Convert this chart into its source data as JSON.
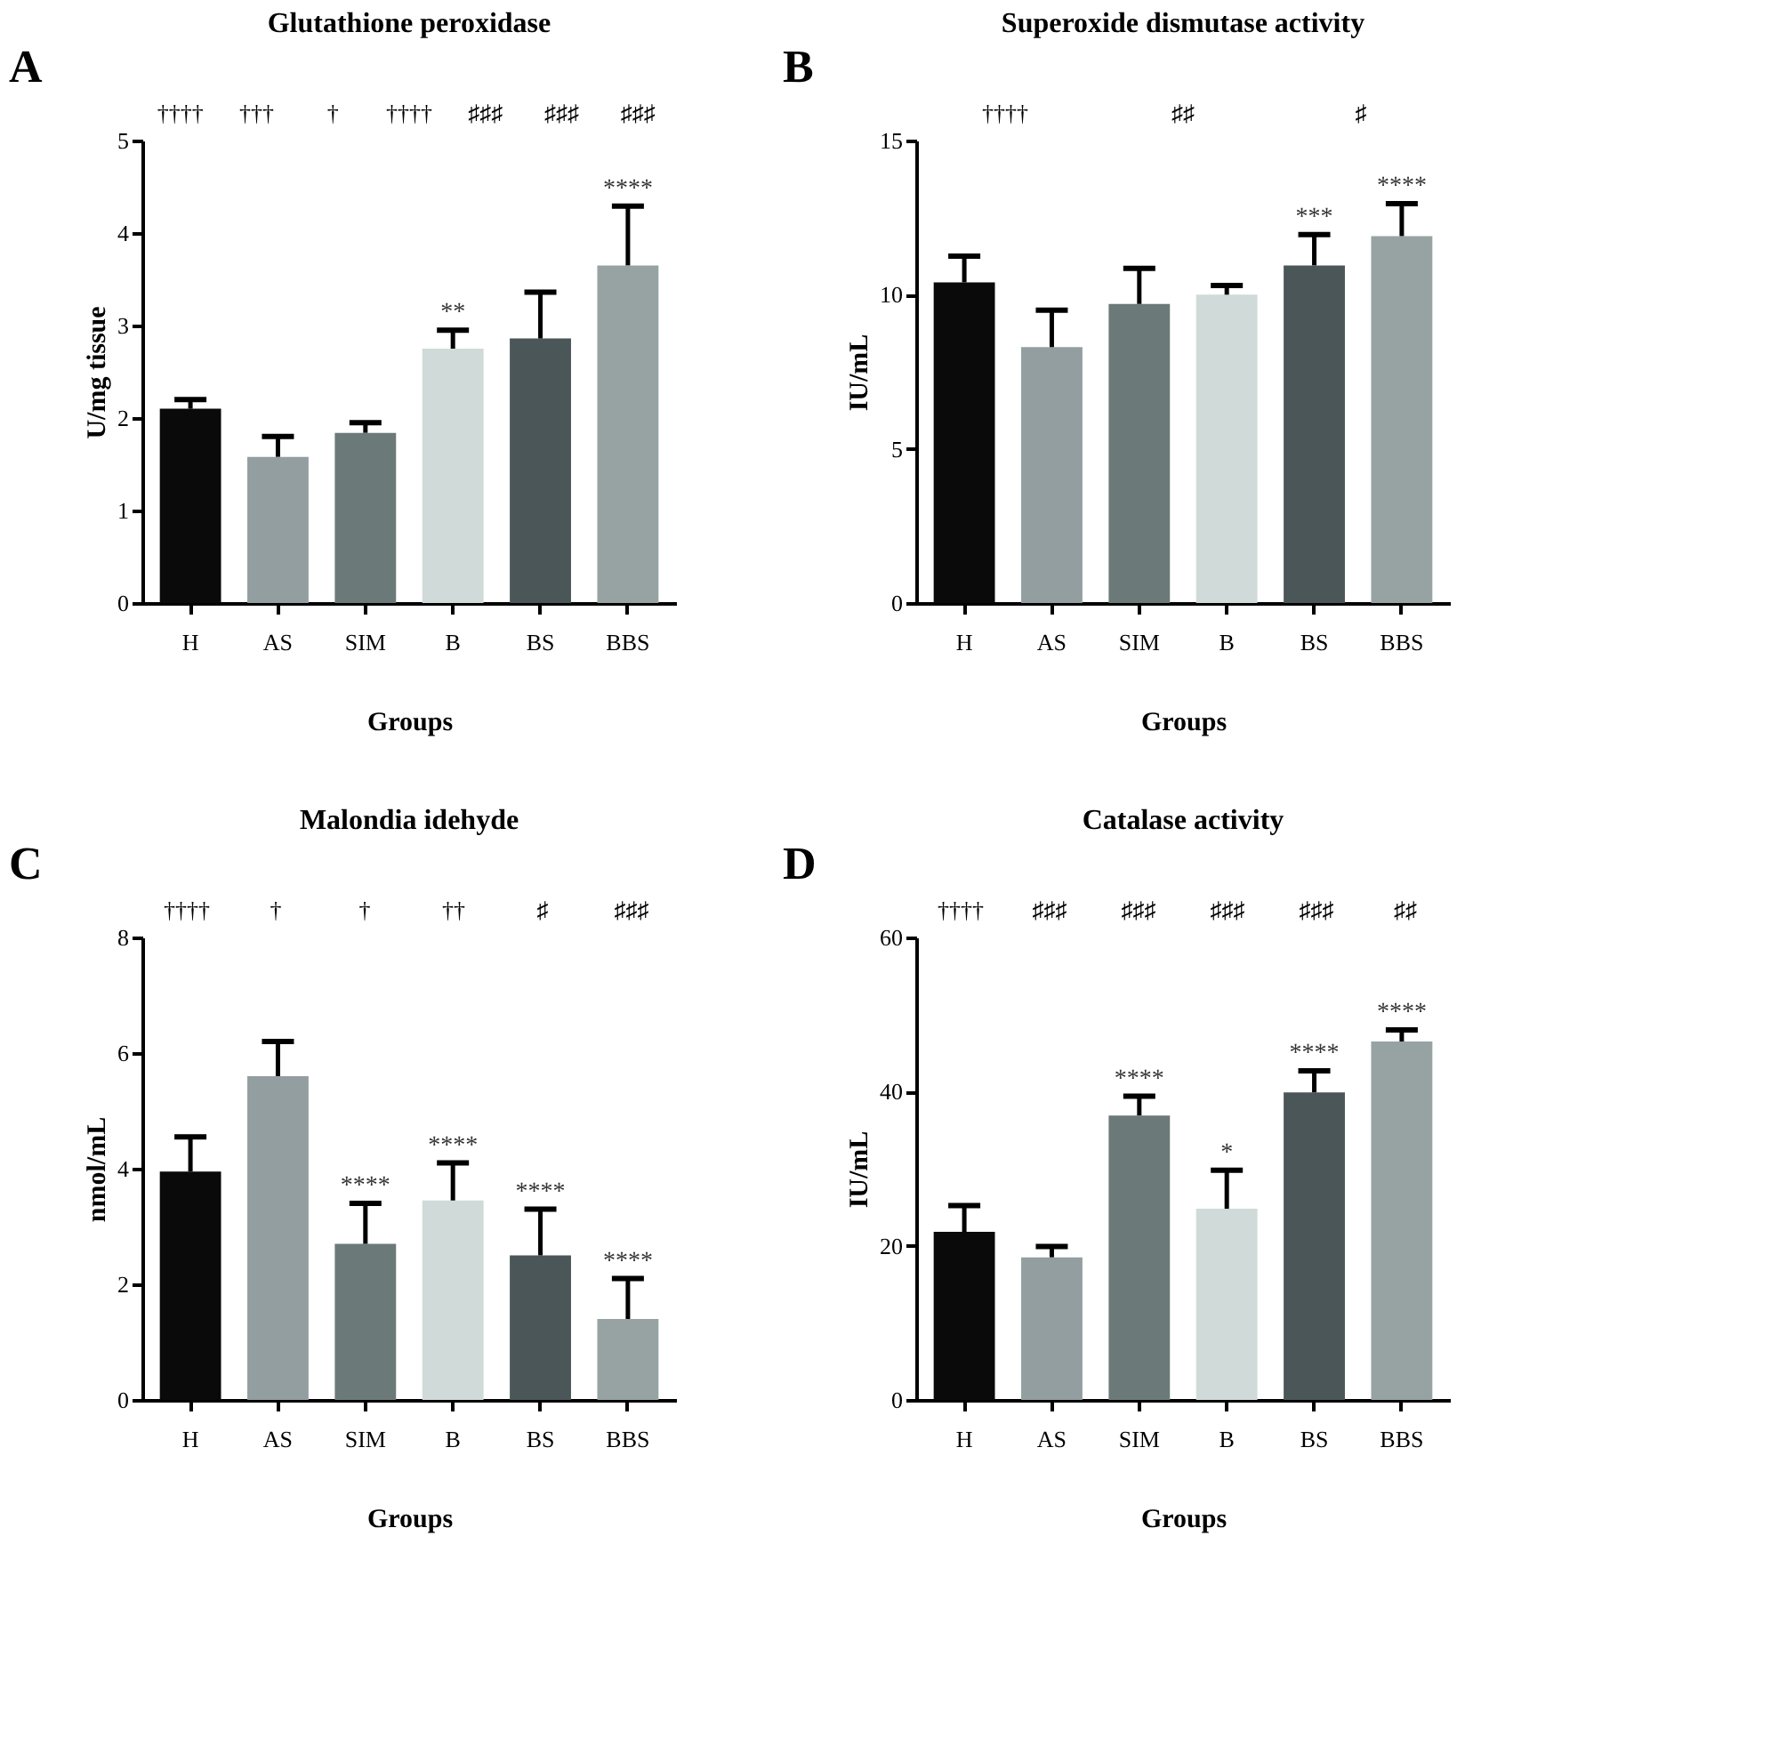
{
  "chart_data": [
    {
      "type": "bar",
      "title": "Glutathione peroxidase",
      "xlabel": "Groups",
      "ylabel": "U/mg tissue",
      "categories": [
        "H",
        "AS",
        "SIM",
        "B",
        "BS",
        "BBS"
      ],
      "values": [
        2.1,
        1.58,
        1.84,
        2.75,
        2.86,
        3.65
      ],
      "errors": [
        [
          2.1,
          2.2
        ],
        [
          1.58,
          1.8
        ],
        [
          1.84,
          1.95
        ],
        [
          2.75,
          2.95
        ],
        [
          2.86,
          3.36
        ],
        [
          3.65,
          4.29
        ]
      ],
      "colors": [
        "#0a0a0a",
        "#939ea0",
        "#6b7a78",
        "#d0dad8",
        "#4a5658",
        "#97a3a3"
      ],
      "ylim": [
        0,
        5
      ],
      "yticks": [
        0,
        1,
        2,
        3,
        4,
        5
      ],
      "grid": false,
      "legend": false,
      "annotations": [
        "A",
        "††††",
        "†††",
        "†",
        "††††",
        "♯♯♯",
        "♯♯♯",
        "♯♯♯",
        {
          "text": "**",
          "x": "B",
          "y": 2.95
        },
        {
          "text": "****",
          "x": "BBS",
          "y": 4.29
        }
      ]
    },
    {
      "type": "bar",
      "title": "Superoxide dismutase activity",
      "xlabel": "Groups",
      "ylabel": "IU/mL",
      "categories": [
        "H",
        "AS",
        "SIM",
        "B",
        "BS",
        "BBS"
      ],
      "values": [
        10.4,
        8.3,
        9.7,
        10.0,
        10.95,
        11.9
      ],
      "errors": [
        [
          10.4,
          11.25
        ],
        [
          8.3,
          9.5
        ],
        [
          9.7,
          10.85
        ],
        [
          10.0,
          10.3
        ],
        [
          10.95,
          11.95
        ],
        [
          11.9,
          12.95
        ]
      ],
      "colors": [
        "#0a0a0a",
        "#939ea0",
        "#6b7a78",
        "#d0dad8",
        "#4a5658",
        "#97a3a3"
      ],
      "ylim": [
        0,
        15
      ],
      "yticks": [
        0,
        5,
        10,
        15
      ],
      "grid": false,
      "legend": false,
      "annotations": [
        "B",
        "††††",
        "♯♯",
        "♯",
        {
          "text": "***",
          "x": "BS",
          "y": 11.95
        },
        {
          "text": "****",
          "x": "BBS",
          "y": 12.95
        }
      ]
    },
    {
      "type": "bar",
      "title": "Malondia idehyde",
      "xlabel": "Groups",
      "ylabel": "nmol/mL",
      "categories": [
        "H",
        "AS",
        "SIM",
        "B",
        "BS",
        "BBS"
      ],
      "values": [
        3.95,
        5.6,
        2.7,
        3.45,
        2.5,
        1.4
      ],
      "errors": [
        [
          3.95,
          4.55
        ],
        [
          5.6,
          6.2
        ],
        [
          2.7,
          3.4
        ],
        [
          3.45,
          4.1
        ],
        [
          2.5,
          3.3
        ],
        [
          1.4,
          2.1
        ]
      ],
      "colors": [
        "#0a0a0a",
        "#939ea0",
        "#6b7a78",
        "#d0dad8",
        "#4a5658",
        "#97a3a3"
      ],
      "ylim": [
        0,
        8
      ],
      "yticks": [
        0,
        2,
        4,
        6,
        8
      ],
      "grid": false,
      "legend": false,
      "annotations": [
        "C",
        "††††",
        "†",
        "†",
        "††",
        "♯",
        "♯♯♯",
        {
          "text": "****",
          "x": "SIM",
          "y": 3.4
        },
        {
          "text": "****",
          "x": "B",
          "y": 4.1
        },
        {
          "text": "****",
          "x": "BS",
          "y": 3.3
        },
        {
          "text": "****",
          "x": "BBS",
          "y": 2.1
        }
      ]
    },
    {
      "type": "bar",
      "title": "Catalase activity",
      "xlabel": "Groups",
      "ylabel": "IU/mL",
      "categories": [
        "H",
        "AS",
        "SIM",
        "B",
        "BS",
        "BBS"
      ],
      "values": [
        21.8,
        18.5,
        36.9,
        24.8,
        39.9,
        46.5
      ],
      "errors": [
        [
          21.8,
          25.2
        ],
        [
          18.5,
          19.9
        ],
        [
          36.9,
          39.4
        ],
        [
          24.8,
          29.8
        ],
        [
          39.9,
          42.7
        ],
        [
          46.5,
          48.0
        ]
      ],
      "colors": [
        "#0a0a0a",
        "#939ea0",
        "#6b7a78",
        "#d0dad8",
        "#4a5658",
        "#97a3a3"
      ],
      "ylim": [
        0,
        60
      ],
      "yticks": [
        0,
        20,
        40,
        60
      ],
      "grid": false,
      "legend": false,
      "annotations": [
        "D",
        "††††",
        "♯♯♯",
        "♯♯♯",
        "♯♯♯",
        "♯♯♯",
        "♯♯",
        {
          "text": "****",
          "x": "SIM",
          "y": 39.4
        },
        {
          "text": "*",
          "x": "B",
          "y": 29.8
        },
        {
          "text": "****",
          "x": "BS",
          "y": 42.7
        },
        {
          "text": "****",
          "x": "BBS",
          "y": 48.0
        }
      ]
    }
  ]
}
